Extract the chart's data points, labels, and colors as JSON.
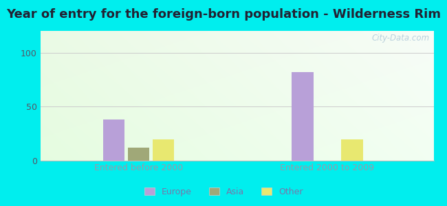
{
  "title": "Year of entry for the foreign-born population - Wilderness Rim",
  "title_fontsize": 13,
  "title_color": "#222233",
  "background_color": "#00EEEE",
  "categories": [
    "Entered before 2000",
    "Entered 2000 to 2009"
  ],
  "series": [
    {
      "label": "Europe",
      "color": "#b8a0d8",
      "values": [
        38,
        82
      ]
    },
    {
      "label": "Asia",
      "color": "#a0a878",
      "values": [
        12,
        0
      ]
    },
    {
      "label": "Other",
      "color": "#e8e870",
      "values": [
        20,
        20
      ]
    }
  ],
  "ylim": [
    0,
    120
  ],
  "yticks": [
    0,
    50,
    100
  ],
  "xlabel_color": "#9999aa",
  "ytick_color": "#555566",
  "grid_color": "#cccccc",
  "watermark": "City-Data.com",
  "bar_width": 0.055,
  "legend_fontsize": 9,
  "axis_label_fontsize": 9
}
